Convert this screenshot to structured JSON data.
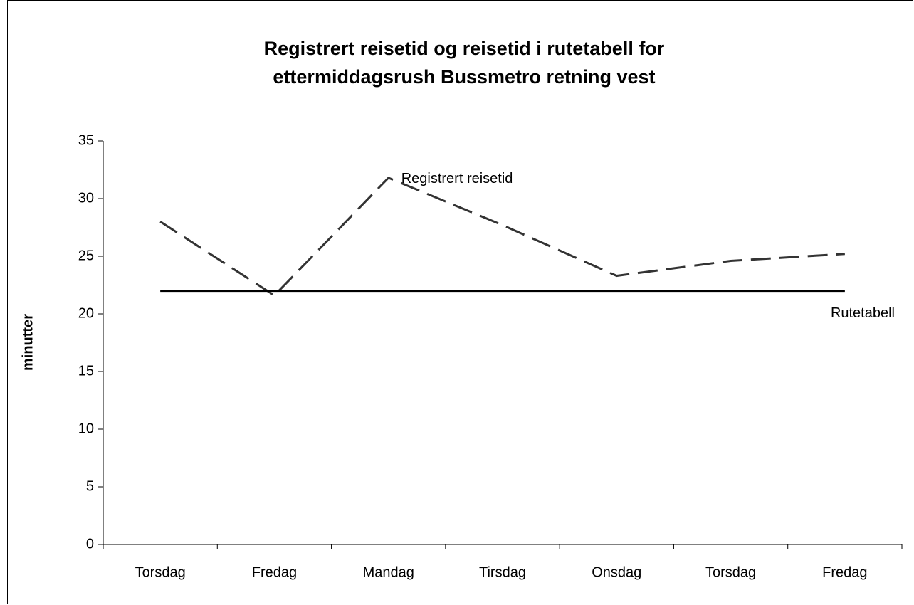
{
  "chart_data": {
    "type": "line",
    "title": [
      "Registrert reisetid og reisetid i rutetabell for",
      "ettermiddagsrush Bussmetro retning vest"
    ],
    "y_axis_label": "minutter",
    "categories": [
      "Torsdag",
      "Fredag",
      "Mandag",
      "Tirsdag",
      "Onsdag",
      "Torsdag",
      "Fredag"
    ],
    "series": [
      {
        "name": "Registrert reisetid",
        "color": "#333333",
        "dashed": true,
        "values": [
          28,
          21.6,
          31.8,
          27.7,
          23.3,
          24.6,
          25.2
        ]
      },
      {
        "name": "Rutetabell",
        "color": "#000000",
        "dashed": false,
        "values": [
          22,
          22,
          22,
          22,
          22,
          22,
          22
        ]
      }
    ],
    "ylim": [
      0,
      35
    ],
    "yticks": [
      0,
      5,
      10,
      15,
      20,
      25,
      30,
      35
    ],
    "grid": false
  }
}
